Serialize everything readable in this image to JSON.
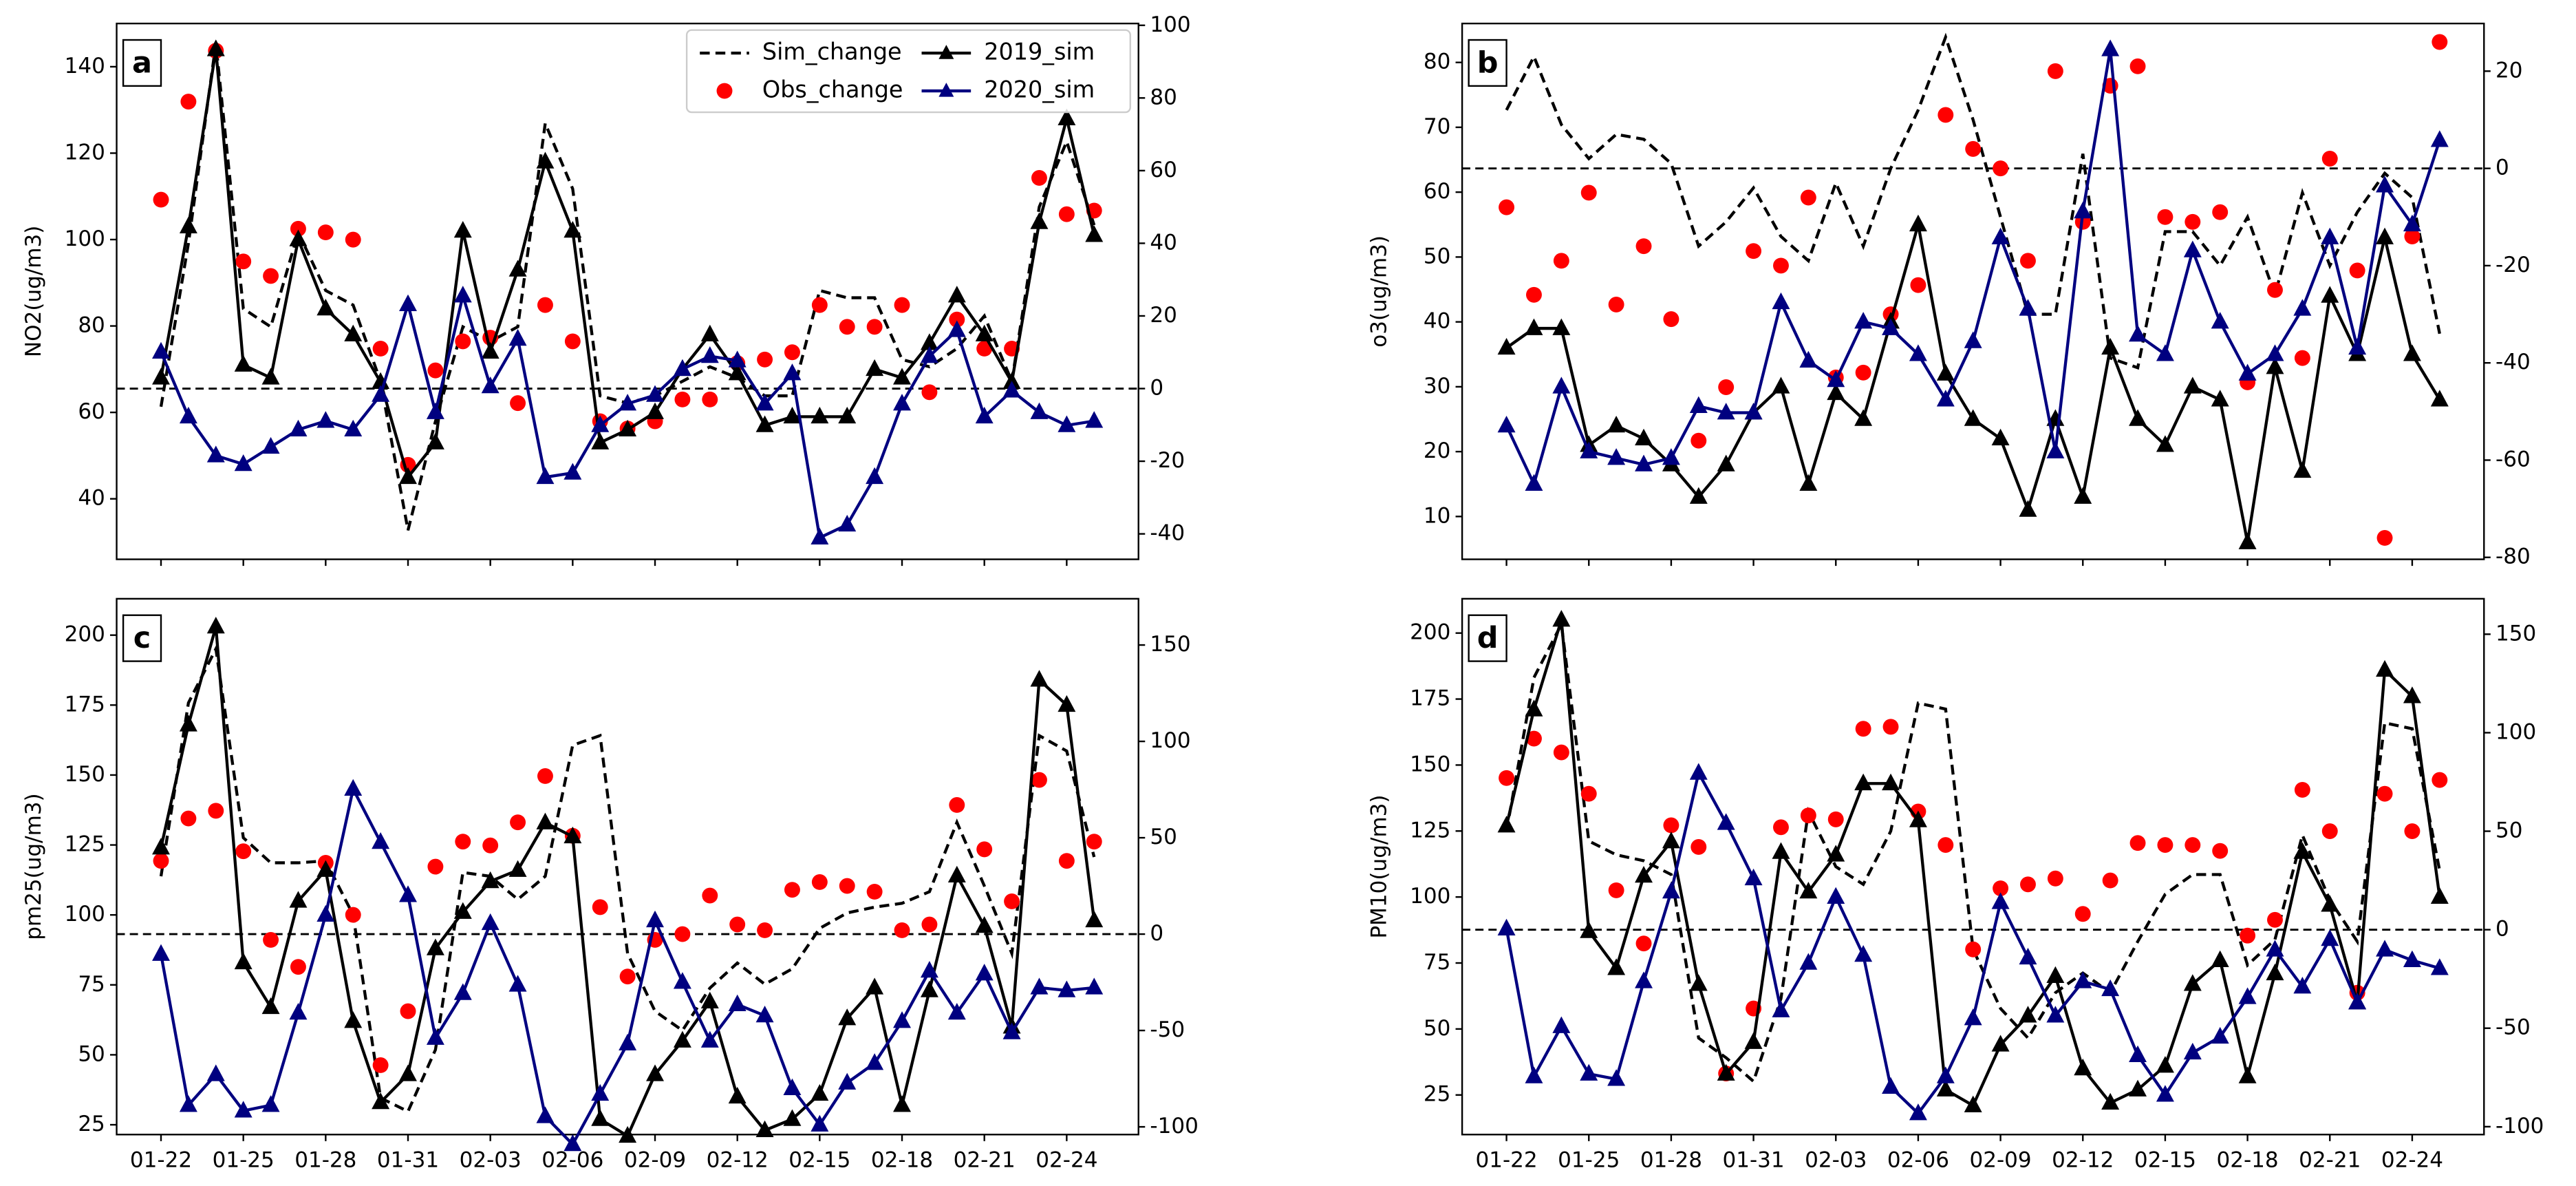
{
  "chart_data": [
    {
      "type": "line",
      "label": "a",
      "ylabel": "NO2(ug/m3)",
      "ylim": [
        26,
        150
      ],
      "yticks": [
        40,
        60,
        80,
        100,
        120,
        140
      ],
      "y2lim": [
        -47,
        100.5
      ],
      "y2ticks": [
        -40,
        -20,
        0,
        20,
        40,
        60,
        80,
        100
      ],
      "axhline": 0,
      "legend": "upper right",
      "series": [
        {
          "name": "Sim_change",
          "color": "#000000",
          "linestyle": "dashed",
          "marker": "none",
          "axis": "y2",
          "values": [
            -5,
            40,
            95,
            22,
            17,
            43,
            27,
            23,
            2,
            -39,
            -9,
            17,
            13,
            17,
            73,
            55,
            -2,
            -4,
            -2,
            2,
            6,
            3,
            -2,
            -2,
            27,
            25,
            25,
            8,
            6,
            11,
            20,
            2,
            50,
            68,
            45
          ]
        },
        {
          "name": "Obs_change",
          "color": "#ff0000",
          "linestyle": "none",
          "marker": "o",
          "axis": "y2",
          "values": [
            52,
            79,
            93,
            35,
            31,
            44,
            43,
            41,
            11,
            -21,
            5,
            13,
            14,
            -4,
            23,
            13,
            -9,
            -11,
            -9,
            -3,
            -3,
            7,
            8,
            10,
            23,
            17,
            17,
            23,
            -1,
            19,
            11,
            11,
            58,
            48,
            49
          ]
        },
        {
          "name": "2019_sim",
          "color": "#000000",
          "linestyle": "solid",
          "marker": "^",
          "axis": "y",
          "values": [
            68,
            103,
            144,
            71,
            68,
            100,
            84,
            78,
            67,
            45,
            53,
            102,
            74,
            93,
            118,
            102,
            53,
            56,
            60,
            70,
            78,
            69,
            57,
            59,
            59,
            59,
            70,
            68,
            76,
            87,
            78,
            67,
            104,
            128,
            101
          ]
        },
        {
          "name": "2020_sim",
          "color": "#000080",
          "linestyle": "solid",
          "marker": "^",
          "axis": "y",
          "values": [
            74,
            59,
            50,
            48,
            52,
            56,
            58,
            56,
            64,
            85,
            60,
            87,
            66,
            77,
            45,
            46,
            57,
            62,
            64,
            70,
            73,
            72,
            62,
            69,
            31,
            34,
            45,
            62,
            73,
            79,
            59,
            65,
            60,
            57,
            58
          ]
        }
      ]
    },
    {
      "type": "line",
      "label": "b",
      "ylabel": "o3(ug/m3)",
      "ylim": [
        3.4,
        86
      ],
      "yticks": [
        10,
        20,
        30,
        40,
        50,
        60,
        70,
        80
      ],
      "y2lim": [
        -80.4,
        29.8
      ],
      "y2ticks": [
        -80,
        -60,
        -40,
        -20,
        0,
        20
      ],
      "axhline": 0,
      "series": [
        {
          "color": "#000000",
          "linestyle": "dashed",
          "marker": "none",
          "axis": "y2",
          "values": [
            12,
            23,
            9,
            2,
            7,
            6,
            1,
            -16,
            -11,
            -4,
            -14,
            -19,
            -3,
            -16,
            0,
            12,
            27,
            10,
            -10,
            -30,
            -30,
            3,
            -39,
            -41,
            -13,
            -13,
            -20,
            -10,
            -26,
            -5,
            -20,
            -9,
            -1,
            -6,
            -34
          ]
        },
        {
          "color": "#ff0000",
          "linestyle": "none",
          "marker": "o",
          "axis": "y2",
          "values": [
            -8,
            -26,
            -19,
            -5,
            -28,
            -16,
            -31,
            -56,
            -45,
            -17,
            -20,
            -6,
            -43,
            -42,
            -30,
            -24,
            11,
            4,
            0,
            -19,
            20,
            -11,
            17,
            21,
            -10,
            -11,
            -9,
            -44,
            -25,
            -39,
            2,
            -21,
            -76,
            -14,
            26
          ]
        },
        {
          "color": "#000000",
          "linestyle": "solid",
          "marker": "^",
          "axis": "y",
          "values": [
            36,
            39,
            39,
            21,
            24,
            22,
            18,
            13,
            18,
            26,
            30,
            15,
            29,
            25,
            40,
            55,
            32,
            25,
            22,
            11,
            25,
            13,
            36,
            25,
            21,
            30,
            28,
            6,
            33,
            17,
            44,
            35,
            53,
            35,
            28
          ]
        },
        {
          "color": "#000080",
          "linestyle": "solid",
          "marker": "^",
          "axis": "y",
          "values": [
            24,
            15,
            30,
            20,
            19,
            18,
            19,
            27,
            26,
            26,
            43,
            34,
            31,
            40,
            39,
            35,
            28,
            37,
            53,
            42,
            20,
            57,
            82,
            38,
            35,
            51,
            40,
            32,
            35,
            42,
            53,
            36,
            61,
            55,
            68
          ]
        }
      ]
    },
    {
      "type": "line",
      "label": "c",
      "ylabel": "pm25(ug/m3)",
      "categories": [
        "01-22",
        null,
        null,
        "01-25",
        null,
        null,
        "01-28",
        null,
        null,
        "01-31",
        null,
        null,
        "02-03",
        null,
        null,
        "02-06",
        null,
        null,
        "02-09",
        null,
        null,
        "02-12",
        null,
        null,
        "02-15",
        null,
        null,
        "02-18",
        null,
        null,
        "02-21",
        null,
        null,
        "02-24",
        null
      ],
      "ylim": [
        21.5,
        213
      ],
      "yticks": [
        25,
        50,
        75,
        100,
        125,
        150,
        175,
        200
      ],
      "y2lim": [
        -104,
        174
      ],
      "y2ticks": [
        -100,
        -50,
        0,
        50,
        100,
        150
      ],
      "axhline": 0,
      "series": [
        {
          "color": "#000000",
          "linestyle": "dashed",
          "marker": "none",
          "axis": "y2",
          "values": [
            30,
            120,
            148,
            50,
            37,
            37,
            38,
            10,
            -85,
            -92,
            -60,
            32,
            30,
            18,
            30,
            98,
            103,
            -10,
            -40,
            -50,
            -28,
            -15,
            -26,
            -18,
            3,
            11,
            14,
            16,
            22,
            58,
            25,
            -10,
            103,
            95,
            40
          ]
        },
        {
          "color": "#ff0000",
          "linestyle": "none",
          "marker": "o",
          "axis": "y2",
          "values": [
            38,
            60,
            64,
            43,
            -3,
            -17,
            37,
            10,
            -68,
            -40,
            35,
            48,
            46,
            58,
            82,
            51,
            14,
            -22,
            -3,
            0,
            20,
            5,
            2,
            23,
            27,
            25,
            22,
            2,
            5,
            67,
            44,
            17,
            80,
            38,
            48
          ]
        },
        {
          "color": "#000000",
          "linestyle": "solid",
          "marker": "^",
          "axis": "y",
          "values": [
            124,
            168,
            203,
            83,
            67,
            105,
            116,
            62,
            33,
            43,
            88,
            101,
            112,
            116,
            133,
            128,
            27,
            21,
            43,
            55,
            69,
            35,
            23,
            27,
            36,
            63,
            74,
            32,
            73,
            114,
            96,
            60,
            184,
            175,
            98
          ]
        },
        {
          "color": "#000080",
          "linestyle": "solid",
          "marker": "^",
          "axis": "y",
          "values": [
            86,
            32,
            43,
            30,
            32,
            65,
            100,
            145,
            126,
            107,
            56,
            72,
            97,
            75,
            28,
            18,
            36,
            54,
            98,
            76,
            55,
            68,
            64,
            38,
            25,
            40,
            47,
            62,
            80,
            65,
            79,
            58,
            74,
            73,
            74
          ]
        }
      ]
    },
    {
      "type": "line",
      "label": "d",
      "ylabel": "PM10(ug/m3)",
      "categories": [
        "01-22",
        null,
        null,
        "01-25",
        null,
        null,
        "01-28",
        null,
        null,
        "01-31",
        null,
        null,
        "02-03",
        null,
        null,
        "02-06",
        null,
        null,
        "02-09",
        null,
        null,
        "02-12",
        null,
        null,
        "02-15",
        null,
        null,
        "02-18",
        null,
        null,
        "02-21",
        null,
        null,
        "02-24",
        null
      ],
      "ylim": [
        10,
        213
      ],
      "yticks": [
        25,
        50,
        75,
        100,
        125,
        150,
        175,
        200
      ],
      "y2lim": [
        -104,
        168
      ],
      "y2ticks": [
        -100,
        -50,
        0,
        50,
        100,
        150
      ],
      "axhline": 0,
      "series": [
        {
          "color": "#000000",
          "linestyle": "dashed",
          "marker": "none",
          "axis": "y2",
          "values": [
            50,
            128,
            155,
            45,
            38,
            35,
            28,
            -55,
            -65,
            -77,
            -35,
            60,
            32,
            23,
            50,
            115,
            112,
            -10,
            -40,
            -55,
            -32,
            -22,
            -32,
            -6,
            18,
            28,
            28,
            -18,
            -5,
            48,
            15,
            -6,
            105,
            102,
            30
          ]
        },
        {
          "color": "#ff0000",
          "linestyle": "none",
          "marker": "o",
          "axis": "y2",
          "values": [
            77,
            97,
            90,
            69,
            20,
            -7,
            53,
            42,
            -73,
            -40,
            52,
            58,
            56,
            102,
            103,
            60,
            43,
            -10,
            21,
            23,
            26,
            8,
            25,
            44,
            43,
            43,
            40,
            -3,
            5,
            71,
            50,
            -32,
            69,
            50,
            76
          ]
        },
        {
          "color": "#000000",
          "linestyle": "solid",
          "marker": "^",
          "axis": "y",
          "values": [
            127,
            171,
            205,
            87,
            73,
            108,
            121,
            67,
            33,
            45,
            117,
            102,
            116,
            143,
            143,
            129,
            27,
            21,
            44,
            55,
            70,
            35,
            22,
            27,
            36,
            67,
            76,
            32,
            71,
            117,
            97,
            60,
            186,
            176,
            100
          ]
        },
        {
          "color": "#000080",
          "linestyle": "solid",
          "marker": "^",
          "axis": "y",
          "values": [
            88,
            32,
            51,
            33,
            31,
            68,
            102,
            147,
            128,
            107,
            57,
            75,
            100,
            78,
            28,
            18,
            32,
            54,
            98,
            77,
            55,
            68,
            65,
            40,
            25,
            41,
            47,
            62,
            80,
            66,
            84,
            60,
            80,
            76,
            73
          ]
        }
      ]
    }
  ]
}
